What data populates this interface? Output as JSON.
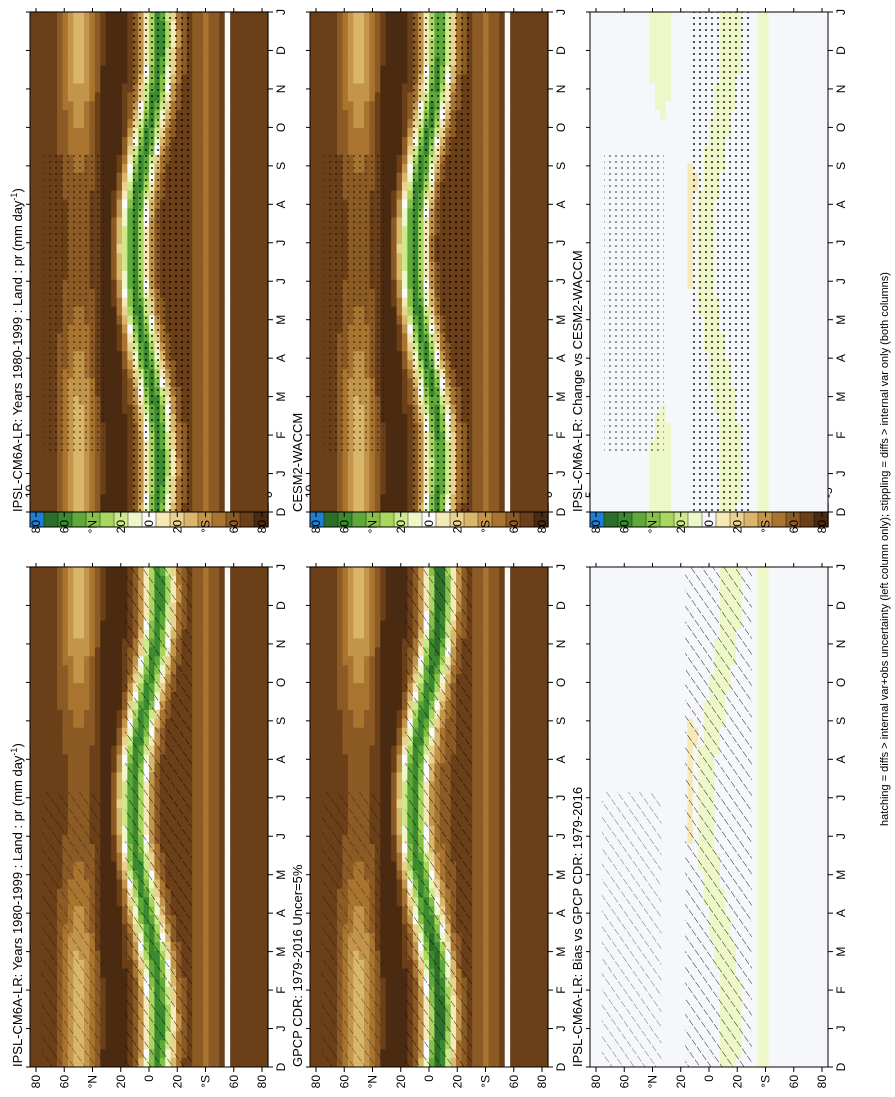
{
  "figure": {
    "footnote": "hatching = diffs > internal var+obs uncertainty (left column only); stippling = diffs > internal var only (both columns)"
  },
  "colors": {
    "abs_scale": [
      "#4a2a10",
      "#6b3f18",
      "#8b5a25",
      "#a8742f",
      "#c2954a",
      "#d9b66a",
      "#ead18f",
      "#f6e9b8",
      "#fbfbfb",
      "#eef7c7",
      "#cde98a",
      "#a9d65f",
      "#86c046",
      "#5fa83a",
      "#3b8a2f",
      "#2d6e2a",
      "#1e7fd2"
    ],
    "diff_scale": [
      "#4a2a10",
      "#6b3f18",
      "#8b5a25",
      "#a8742f",
      "#c2954a",
      "#d9b66a",
      "#ead18f",
      "#f6e9b8",
      "#f5f7fb",
      "#eef7c7",
      "#cde98a",
      "#a9d65f",
      "#86c046",
      "#5fa83a",
      "#3b8a2f",
      "#2d6e2a",
      "#1e7fd2"
    ]
  },
  "chart_data": [
    {
      "type": "heatmap",
      "title": "IPSL-CM6A-LR: Years 1980-1999 : Land : pr (mm day",
      "title_sup": "-1",
      "title_end": ")",
      "x": [
        "D",
        "J",
        "F",
        "M",
        "A",
        "M",
        "J",
        "J",
        "A",
        "S",
        "O",
        "N",
        "D",
        "J"
      ],
      "y_ticks": [
        "80",
        "60",
        "°N",
        "20",
        "0",
        "20",
        "°S",
        "60",
        "80"
      ],
      "colorbar_ticks": [
        "10",
        "9",
        "8",
        "7",
        "6",
        "5",
        "4",
        "3",
        "2",
        "1",
        "0"
      ],
      "zlim": [
        0,
        10
      ],
      "overlay": "hatching"
    },
    {
      "type": "heatmap",
      "title": "IPSL-CM6A-LR: Years 1980-1999 : Land : pr (mm day",
      "title_sup": "-1",
      "title_end": ")",
      "x": [
        "D",
        "J",
        "F",
        "M",
        "A",
        "M",
        "J",
        "J",
        "A",
        "S",
        "O",
        "N",
        "D",
        "J"
      ],
      "y_ticks": [
        "80",
        "60",
        "°N",
        "20",
        "0",
        "20",
        "°S",
        "60",
        "80"
      ],
      "colorbar_ticks": [
        "10",
        "9",
        "8",
        "7",
        "6",
        "5",
        "4",
        "3",
        "2",
        "1",
        "0"
      ],
      "zlim": [
        0,
        10
      ],
      "overlay": "stippling"
    },
    {
      "type": "heatmap",
      "title": "GPCP CDR: 1979-2016 Uncer=5%",
      "title_sup": "",
      "title_end": "",
      "x": [
        "D",
        "J",
        "F",
        "M",
        "A",
        "M",
        "J",
        "J",
        "A",
        "S",
        "O",
        "N",
        "D",
        "J"
      ],
      "y_ticks": [
        "80",
        "60",
        "°N",
        "20",
        "0",
        "20",
        "°S",
        "60",
        "80"
      ],
      "colorbar_ticks": [
        "10",
        "9",
        "8",
        "7",
        "6",
        "5",
        "4",
        "3",
        "2",
        "1",
        "0"
      ],
      "zlim": [
        0,
        10
      ],
      "overlay": "hatching"
    },
    {
      "type": "heatmap",
      "title": "CESM2-WACCM",
      "title_sup": "",
      "title_end": "",
      "x": [
        "D",
        "J",
        "F",
        "M",
        "A",
        "M",
        "J",
        "J",
        "A",
        "S",
        "O",
        "N",
        "D",
        "J"
      ],
      "y_ticks": [
        "80",
        "60",
        "°N",
        "20",
        "0",
        "20",
        "°S",
        "60",
        "80"
      ],
      "colorbar_ticks": [
        "10",
        "9",
        "8",
        "7",
        "6",
        "5",
        "4",
        "3",
        "2",
        "1",
        "0"
      ],
      "zlim": [
        0,
        10
      ],
      "overlay": "stippling"
    },
    {
      "type": "heatmap",
      "title": "IPSL-CM6A-LR: Bias vs GPCP CDR: 1979-2016",
      "title_sup": "",
      "title_end": "",
      "x": [
        "D",
        "J",
        "F",
        "M",
        "A",
        "M",
        "J",
        "J",
        "A",
        "S",
        "O",
        "N",
        "D",
        "J"
      ],
      "y_ticks": [
        "80",
        "60",
        "°N",
        "20",
        "0",
        "20",
        "°S",
        "60",
        "80"
      ],
      "colorbar_ticks": [
        "5",
        "4",
        "3",
        "2",
        "1",
        "0",
        "-1",
        "-2",
        "-3",
        "-4",
        "-5"
      ],
      "zlim": [
        -5,
        5
      ],
      "overlay": "hatching"
    },
    {
      "type": "heatmap",
      "title": "IPSL-CM6A-LR: Change vs CESM2-WACCM",
      "title_sup": "",
      "title_end": "",
      "x": [
        "D",
        "J",
        "F",
        "M",
        "A",
        "M",
        "J",
        "J",
        "A",
        "S",
        "O",
        "N",
        "D",
        "J"
      ],
      "y_ticks": [
        "80",
        "60",
        "°N",
        "20",
        "0",
        "20",
        "°S",
        "60",
        "80"
      ],
      "colorbar_ticks": [
        "5",
        "4",
        "3",
        "2",
        "1",
        "0",
        "-1",
        "-2",
        "-3",
        "-4",
        "-5"
      ],
      "zlim": [
        -5,
        5
      ],
      "overlay": "stippling"
    }
  ]
}
